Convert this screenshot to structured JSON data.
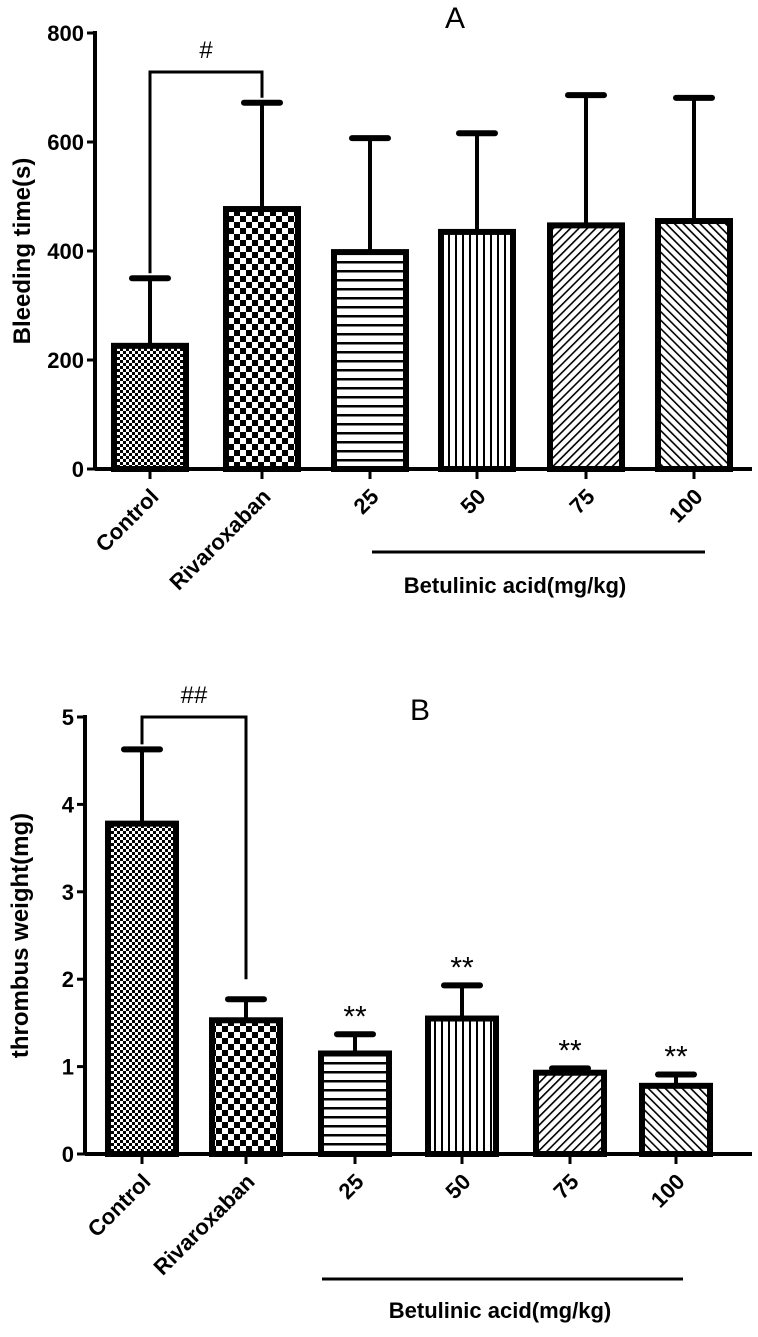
{
  "chart_data": [
    {
      "type": "bar",
      "title": "A",
      "ylabel": "Bleeding time(s)",
      "xlabel": "",
      "group_label": "Betulinic acid(mg/kg)",
      "group_categories": [
        "25",
        "50",
        "75",
        "100"
      ],
      "categories": [
        "Control",
        "Rivaroxaban",
        "25",
        "50",
        "75",
        "100"
      ],
      "values": [
        226,
        477,
        398,
        435,
        447,
        455
      ],
      "error_upper": [
        350,
        672,
        607,
        616,
        686,
        681
      ],
      "patterns": [
        "fine-check",
        "check",
        "horizontal",
        "vertical",
        "diag-right",
        "diag-left"
      ],
      "ylim": [
        0,
        800
      ],
      "yticks": [
        "0",
        "200",
        "400",
        "600",
        "800"
      ],
      "annotations": [
        {
          "text": "#",
          "from": "Control",
          "to": "Rivaroxaban"
        }
      ],
      "star_labels": [
        "",
        "",
        "",
        "",
        "",
        ""
      ]
    },
    {
      "type": "bar",
      "title": "B",
      "ylabel": "thrombus weight(mg)",
      "xlabel": "",
      "group_label": "Betulinic acid(mg/kg)",
      "group_categories": [
        "25",
        "50",
        "75",
        "100"
      ],
      "categories": [
        "Control",
        "Rivaroxaban",
        "25",
        "50",
        "75",
        "100"
      ],
      "values": [
        3.78,
        1.53,
        1.15,
        1.55,
        0.93,
        0.78
      ],
      "error_upper": [
        4.63,
        1.77,
        1.37,
        1.93,
        0.98,
        0.91
      ],
      "patterns": [
        "fine-check",
        "check",
        "horizontal",
        "vertical",
        "diag-right",
        "diag-left"
      ],
      "ylim": [
        0,
        5
      ],
      "yticks": [
        "0",
        "1",
        "2",
        "3",
        "4",
        "5"
      ],
      "annotations": [
        {
          "text": "##",
          "from": "Control",
          "to": "Rivaroxaban"
        }
      ],
      "star_labels": [
        "",
        "",
        "**",
        "**",
        "**",
        "**"
      ]
    }
  ]
}
